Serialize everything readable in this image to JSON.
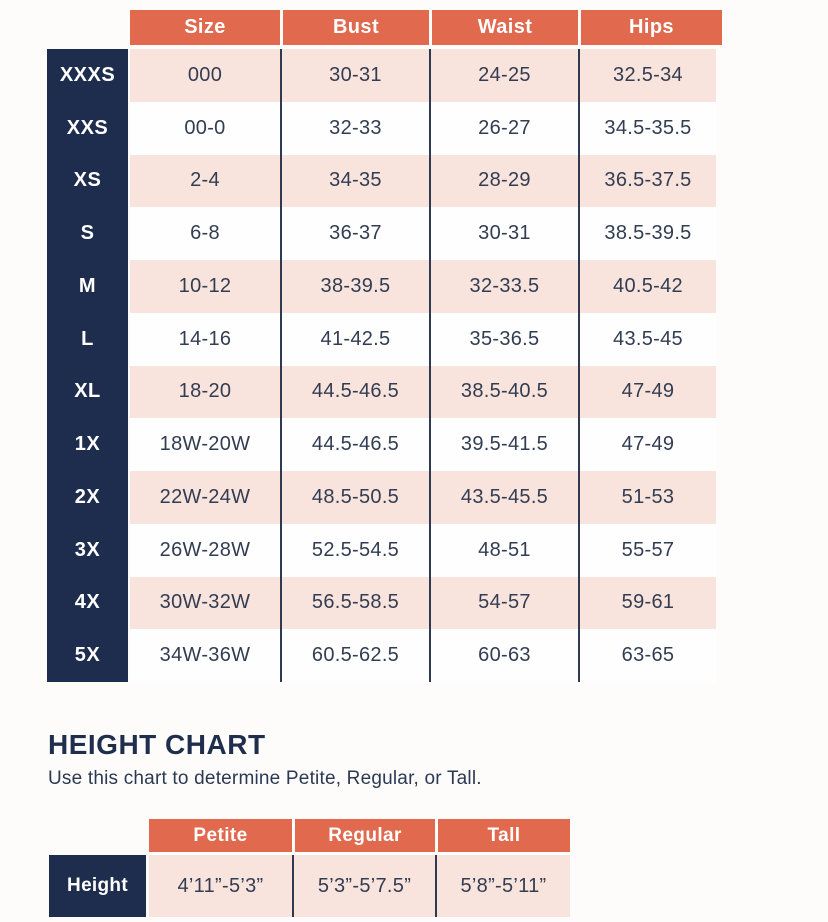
{
  "colors": {
    "header_bg": "#e0694e",
    "row_pink": "#f8e3dd",
    "navy": "#1e2d4d",
    "text_dark": "#323d52"
  },
  "size_chart": {
    "headers": [
      "Size",
      "Bust",
      "Waist",
      "Hips"
    ],
    "row_labels": [
      "XXXS",
      "XXS",
      "XS",
      "S",
      "M",
      "L",
      "XL",
      "1X",
      "2X",
      "3X",
      "4X",
      "5X"
    ],
    "rows": [
      [
        "000",
        "30-31",
        "24-25",
        "32.5-34"
      ],
      [
        "00-0",
        "32-33",
        "26-27",
        "34.5-35.5"
      ],
      [
        "2-4",
        "34-35",
        "28-29",
        "36.5-37.5"
      ],
      [
        "6-8",
        "36-37",
        "30-31",
        "38.5-39.5"
      ],
      [
        "10-12",
        "38-39.5",
        "32-33.5",
        "40.5-42"
      ],
      [
        "14-16",
        "41-42.5",
        "35-36.5",
        "43.5-45"
      ],
      [
        "18-20",
        "44.5-46.5",
        "38.5-40.5",
        "47-49"
      ],
      [
        "18W-20W",
        "44.5-46.5",
        "39.5-41.5",
        "47-49"
      ],
      [
        "22W-24W",
        "48.5-50.5",
        "43.5-45.5",
        "51-53"
      ],
      [
        "26W-28W",
        "52.5-54.5",
        "48-51",
        "55-57"
      ],
      [
        "30W-32W",
        "56.5-58.5",
        "54-57",
        "59-61"
      ],
      [
        "34W-36W",
        "60.5-62.5",
        "60-63",
        "63-65"
      ]
    ]
  },
  "height_chart": {
    "title": "HEIGHT CHART",
    "subtitle": "Use this chart to determine Petite, Regular, or Tall.",
    "headers": [
      "Petite",
      "Regular",
      "Tall"
    ],
    "row_label": "Height",
    "values": [
      "4’11”-5’3”",
      "5’3”-5’7.5”",
      "5’8”-5’11”"
    ]
  }
}
